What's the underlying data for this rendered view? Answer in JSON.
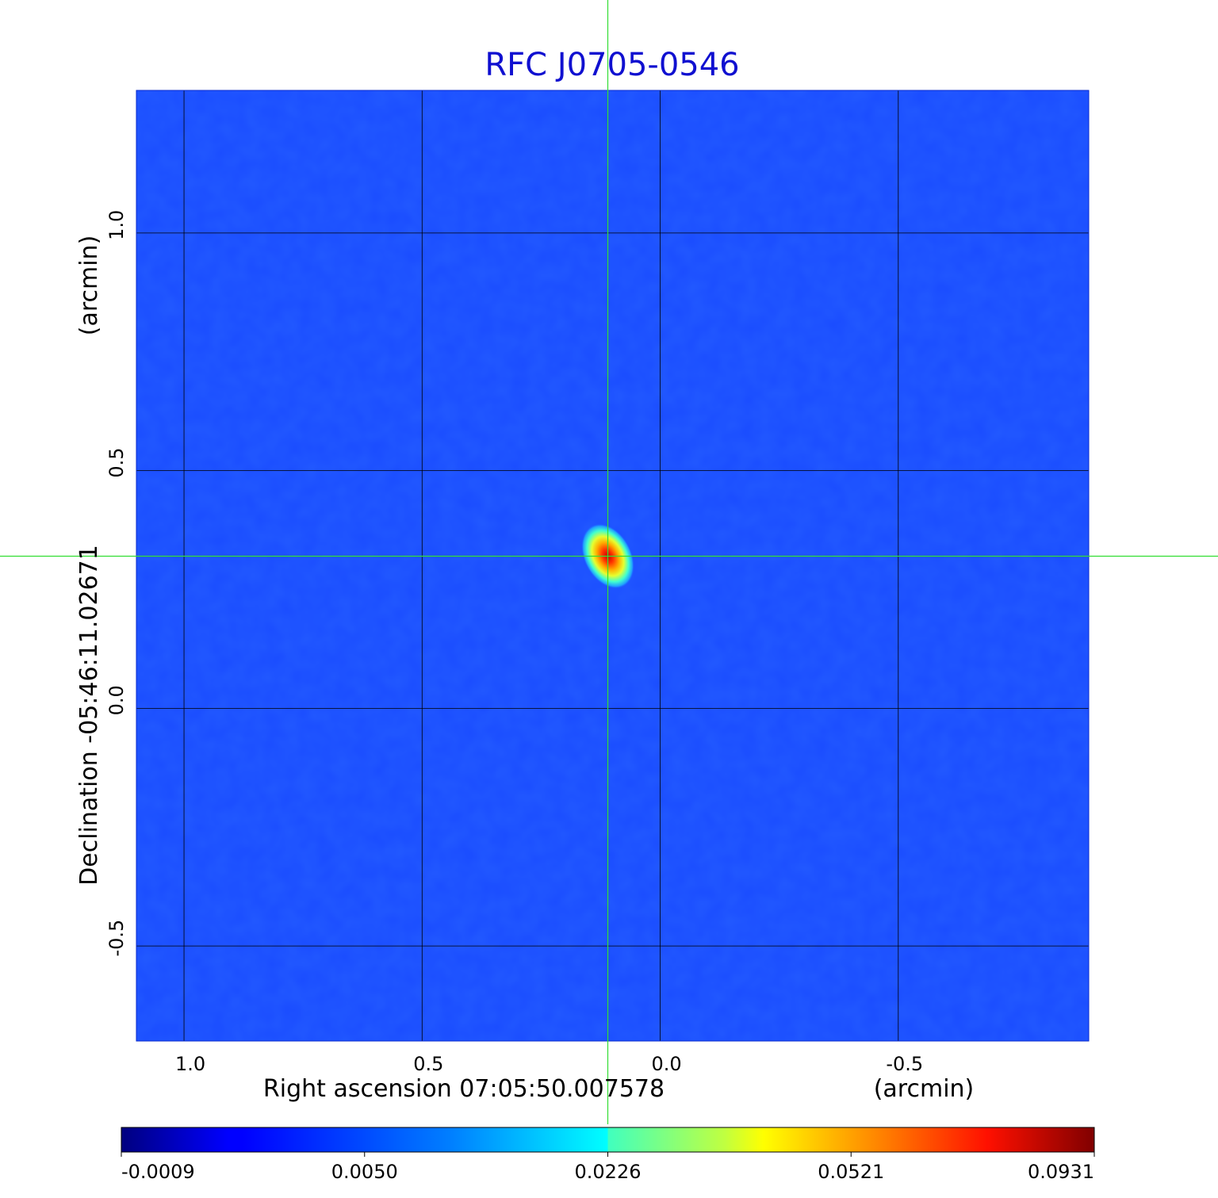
{
  "chart_data": {
    "type": "heatmap",
    "title": "RFC J0705-0546",
    "xlabel": "Right ascension  07:05:50.007578",
    "xunit": "(arcmin)",
    "ylabel": "Declination  -05:46:11.02671",
    "yunit": "(arcmin)",
    "xlim": [
      1.1,
      -0.9
    ],
    "ylim": [
      -0.7,
      1.3
    ],
    "xticks": [
      1.0,
      0.5,
      0.0,
      -0.5
    ],
    "xtick_labels": [
      "1.0",
      "0.5",
      "0.0",
      "-0.5"
    ],
    "yticks": [
      1.0,
      0.5,
      0.0,
      -0.5
    ],
    "ytick_labels": [
      "1.0",
      "0.5",
      "0.0",
      "-0.5"
    ],
    "grid": true,
    "crosshair": {
      "x": 0.11,
      "y": 0.32
    },
    "peak": {
      "x": 0.11,
      "y": 0.32,
      "value": 0.0931
    },
    "colorbar": {
      "ticks": [
        "-0.0009",
        "0.0050",
        "0.0226",
        "0.0521",
        "0.0931"
      ],
      "colormap": "jet"
    },
    "colors": {
      "title": "#1010d0",
      "background": "#1a4cff",
      "grid": "#000000",
      "crosshair": "#33dd33"
    }
  }
}
